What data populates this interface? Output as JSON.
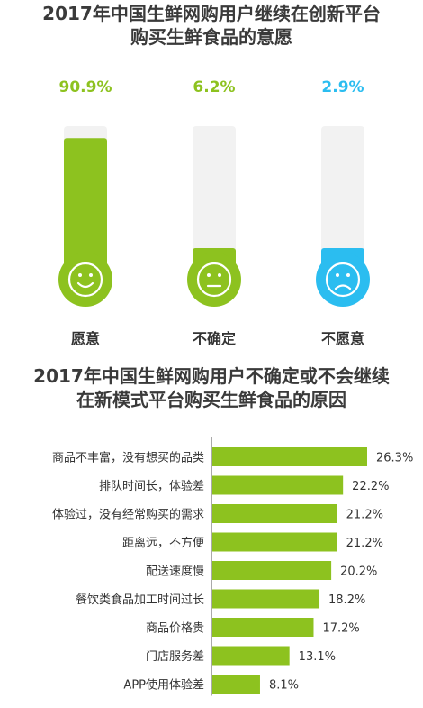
{
  "colors": {
    "green": "#8dc21f",
    "face_green": "#8dc21f",
    "blue": "#2bbdf0",
    "track": "#f2f2f2",
    "axis": "#555555"
  },
  "chart_data": [
    {
      "type": "bar",
      "title": "2017年中国生鲜网购用户继续在创新平台\n购买生鲜食品的意愿",
      "title_lines": [
        "2017年中国生鲜网购用户继续在创新平台",
        "购买生鲜食品的意愿"
      ],
      "categories": [
        "愿意",
        "不确定",
        "不愿意"
      ],
      "values": [
        90.9,
        6.2,
        2.9
      ],
      "value_labels": [
        "90.9%",
        "6.2%",
        "2.9%"
      ],
      "face_icons": [
        "smile-face-icon",
        "neutral-face-icon",
        "sad-face-icon"
      ],
      "ylim": [
        0,
        100
      ]
    },
    {
      "type": "bar",
      "orientation": "horizontal",
      "title": "2017年中国生鲜网购用户不确定或不会继续\n在新模式平台购买生鲜食品的原因",
      "title_lines": [
        "2017年中国生鲜网购用户不确定或不会继续",
        "在新模式平台购买生鲜食品的原因"
      ],
      "categories": [
        "商品不丰富，没有想买的品类",
        "排队时间长，体验差",
        "体验过，没有经常购买的需求",
        "距离远，不方便",
        "配送速度慢",
        "餐饮类食品加工时间过长",
        "商品价格贵",
        "门店服务差",
        "APP使用体验差"
      ],
      "values": [
        26.3,
        22.2,
        21.2,
        21.2,
        20.2,
        18.2,
        17.2,
        13.1,
        8.1
      ],
      "value_labels": [
        "26.3%",
        "22.2%",
        "21.2%",
        "21.2%",
        "20.2%",
        "18.2%",
        "17.2%",
        "13.1%",
        "8.1%"
      ],
      "xlim": [
        0,
        30
      ]
    }
  ]
}
